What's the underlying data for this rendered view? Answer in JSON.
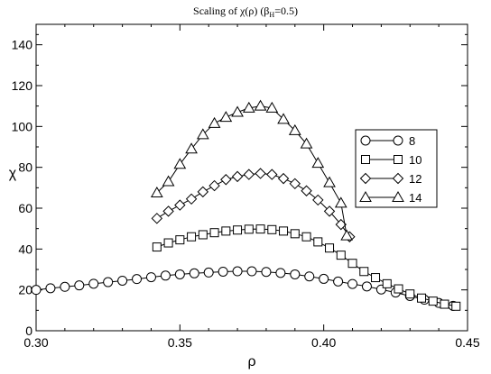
{
  "chart_data": {
    "type": "line",
    "title": "Scaling of χ(ρ)   (β",
    "title_sub": "H",
    "title_tail": "=0.5)",
    "xlabel": "ρ",
    "ylabel": "χ",
    "xlim": [
      0.3,
      0.45
    ],
    "ylim": [
      0,
      150
    ],
    "xticks": [
      0.3,
      0.35,
      0.4,
      0.45
    ],
    "xtick_labels": [
      "0.30",
      "0.35",
      "0.40",
      "0.45"
    ],
    "yticks": [
      0,
      20,
      40,
      60,
      80,
      100,
      120,
      140
    ],
    "ytick_labels": [
      "0",
      "20",
      "40",
      "60",
      "80",
      "100",
      "120",
      "140"
    ],
    "grid": false,
    "legend_position": "right",
    "series": [
      {
        "name": "8",
        "marker": "circle",
        "points": [
          [
            0.3,
            20.0
          ],
          [
            0.305,
            20.8
          ],
          [
            0.31,
            21.5
          ],
          [
            0.315,
            22.2
          ],
          [
            0.32,
            23.0
          ],
          [
            0.325,
            23.8
          ],
          [
            0.33,
            24.5
          ],
          [
            0.335,
            25.3
          ],
          [
            0.34,
            26.2
          ],
          [
            0.345,
            27.0
          ],
          [
            0.35,
            27.6
          ],
          [
            0.355,
            28.1
          ],
          [
            0.36,
            28.5
          ],
          [
            0.365,
            28.9
          ],
          [
            0.37,
            29.1
          ],
          [
            0.375,
            29.1
          ],
          [
            0.38,
            28.8
          ],
          [
            0.385,
            28.3
          ],
          [
            0.39,
            27.6
          ],
          [
            0.395,
            26.6
          ],
          [
            0.4,
            25.4
          ],
          [
            0.405,
            24.1
          ],
          [
            0.41,
            22.9
          ],
          [
            0.415,
            21.7
          ],
          [
            0.42,
            20.2
          ],
          [
            0.425,
            18.7
          ],
          [
            0.43,
            17.0
          ],
          [
            0.435,
            15.2
          ],
          [
            0.44,
            13.6
          ],
          [
            0.445,
            12.2
          ]
        ]
      },
      {
        "name": "10",
        "marker": "square",
        "points": [
          [
            0.342,
            41.0
          ],
          [
            0.346,
            43.0
          ],
          [
            0.35,
            44.5
          ],
          [
            0.354,
            46.0
          ],
          [
            0.358,
            47.0
          ],
          [
            0.362,
            48.0
          ],
          [
            0.366,
            48.8
          ],
          [
            0.37,
            49.3
          ],
          [
            0.374,
            49.7
          ],
          [
            0.378,
            49.8
          ],
          [
            0.382,
            49.5
          ],
          [
            0.386,
            48.8
          ],
          [
            0.39,
            47.5
          ],
          [
            0.394,
            46.0
          ],
          [
            0.398,
            43.5
          ],
          [
            0.402,
            40.5
          ],
          [
            0.406,
            37.0
          ],
          [
            0.41,
            33.0
          ],
          [
            0.414,
            29.0
          ],
          [
            0.418,
            26.0
          ],
          [
            0.422,
            23.0
          ],
          [
            0.426,
            20.5
          ],
          [
            0.43,
            18.0
          ],
          [
            0.434,
            16.0
          ],
          [
            0.438,
            14.5
          ],
          [
            0.442,
            13.0
          ],
          [
            0.446,
            12.0
          ]
        ]
      },
      {
        "name": "12",
        "marker": "diamond",
        "points": [
          [
            0.342,
            55.0
          ],
          [
            0.346,
            58.5
          ],
          [
            0.35,
            61.5
          ],
          [
            0.354,
            64.5
          ],
          [
            0.358,
            68.0
          ],
          [
            0.362,
            71.0
          ],
          [
            0.366,
            74.0
          ],
          [
            0.37,
            75.5
          ],
          [
            0.374,
            76.5
          ],
          [
            0.378,
            77.0
          ],
          [
            0.382,
            76.5
          ],
          [
            0.386,
            74.5
          ],
          [
            0.39,
            72.0
          ],
          [
            0.394,
            68.5
          ],
          [
            0.398,
            64.0
          ],
          [
            0.402,
            58.5
          ],
          [
            0.406,
            52.0
          ],
          [
            0.409,
            46.0
          ]
        ]
      },
      {
        "name": "14",
        "marker": "triangle",
        "points": [
          [
            0.342,
            67.5
          ],
          [
            0.346,
            73.0
          ],
          [
            0.35,
            81.5
          ],
          [
            0.354,
            89.0
          ],
          [
            0.358,
            96.0
          ],
          [
            0.362,
            101.5
          ],
          [
            0.366,
            104.5
          ],
          [
            0.37,
            107.0
          ],
          [
            0.374,
            109.0
          ],
          [
            0.378,
            110.0
          ],
          [
            0.382,
            109.0
          ],
          [
            0.386,
            103.5
          ],
          [
            0.39,
            98.0
          ],
          [
            0.394,
            91.5
          ],
          [
            0.398,
            82.0
          ],
          [
            0.402,
            72.5
          ],
          [
            0.406,
            62.5
          ],
          [
            0.408,
            46.5
          ]
        ]
      }
    ]
  }
}
